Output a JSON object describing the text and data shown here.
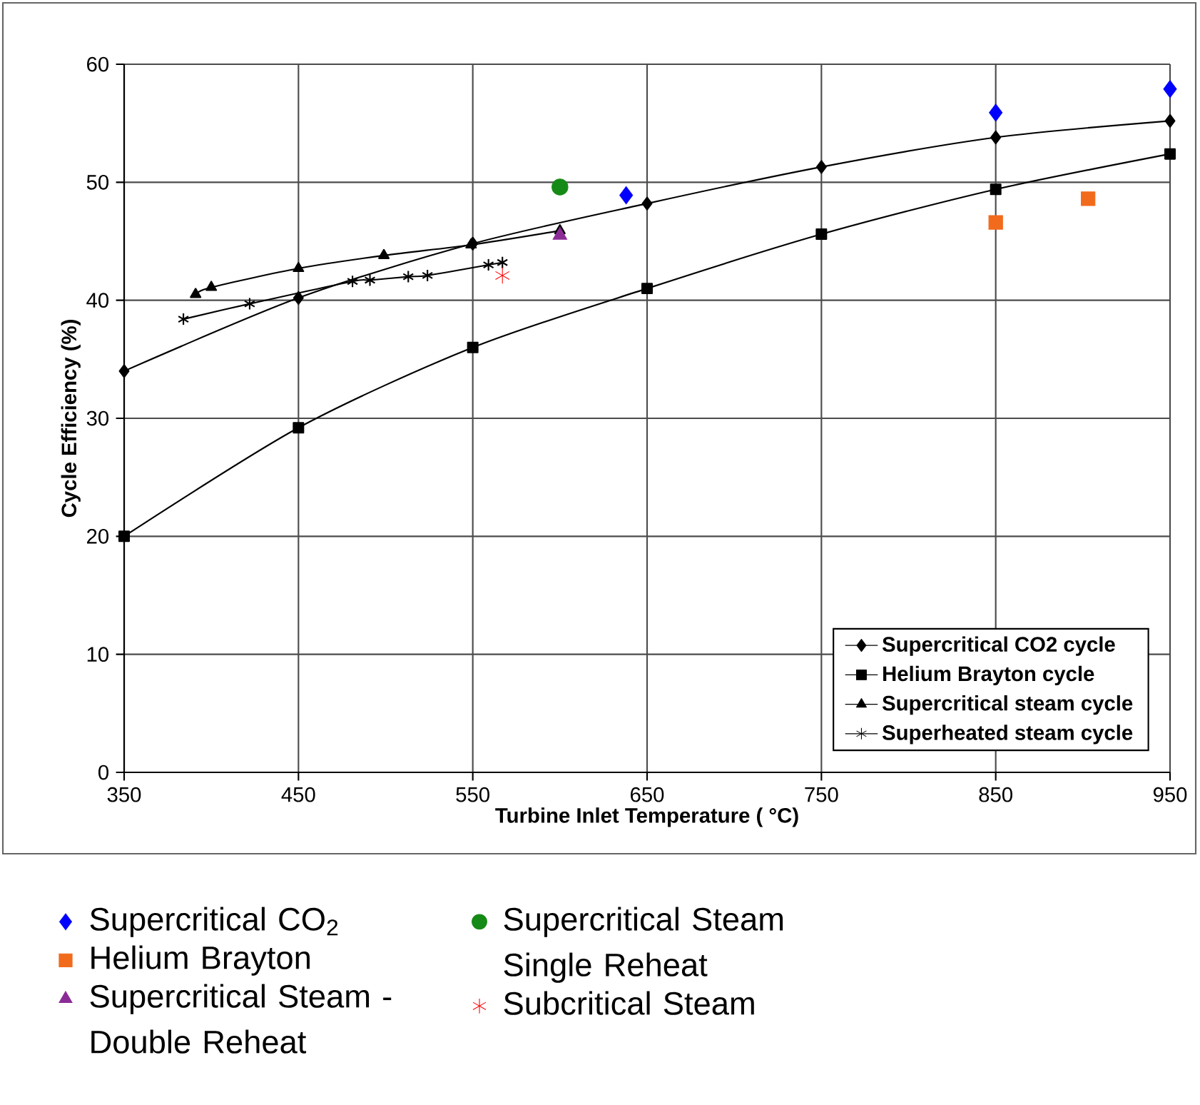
{
  "chart_data": {
    "type": "line",
    "xlabel": "Turbine Inlet Temperature (  °C)",
    "ylabel": "Cycle Efficiency (%)",
    "xlim": [
      350,
      950
    ],
    "ylim": [
      0,
      60
    ],
    "xticks": [
      350,
      450,
      550,
      650,
      750,
      850,
      950
    ],
    "yticks": [
      0,
      10,
      20,
      30,
      40,
      50,
      60
    ],
    "grid": true,
    "legend": "bottom right",
    "series": [
      {
        "name": "Supercritical CO2 cycle",
        "color": "#000000",
        "marker": "diamond",
        "x": [
          350,
          450,
          550,
          650,
          750,
          850,
          950
        ],
        "values": [
          34,
          40.2,
          44.8,
          48.2,
          51.3,
          53.8,
          55.2
        ]
      },
      {
        "name": "Helium Brayton cycle",
        "color": "#000000",
        "marker": "square",
        "x": [
          350,
          450,
          550,
          650,
          750,
          850,
          950
        ],
        "values": [
          20,
          29.2,
          36,
          41,
          45.6,
          49.4,
          52.4
        ]
      },
      {
        "name": "Supercritical steam cycle",
        "color": "#000000",
        "marker": "triangle",
        "x": [
          391,
          400,
          450,
          499,
          549,
          600
        ],
        "values": [
          40.5,
          41.1,
          42.7,
          43.8,
          44.7,
          45.9
        ]
      },
      {
        "name": "Superheated steam cycle",
        "color": "#000000",
        "marker": "cross",
        "x": [
          384,
          422,
          481,
          491,
          513,
          524,
          559,
          567
        ],
        "values": [
          38.4,
          39.7,
          41.6,
          41.7,
          42.0,
          42.1,
          43.0,
          43.2
        ]
      },
      {
        "name": "Supercritical CO$_{2}$",
        "type": "scatter",
        "color": "#0000ff",
        "marker": "diamond",
        "x": [
          638,
          850,
          950
        ],
        "values": [
          48.9,
          55.9,
          57.9
        ]
      },
      {
        "name": "Helium Brayton",
        "type": "scatter",
        "color": "#f26b1d",
        "marker": "square",
        "x": [
          850,
          903
        ],
        "values": [
          46.6,
          48.6
        ]
      },
      {
        "name": "Supercritical Steam - Double Reheat",
        "type": "scatter",
        "color": "#8b2c96",
        "marker": "triangle",
        "x": [
          600
        ],
        "values": [
          45.5
        ]
      },
      {
        "name": "Supercritical Steam Single Reheat",
        "type": "scatter",
        "color": "#168a16",
        "marker": "circle",
        "x": [
          600
        ],
        "values": [
          49.6
        ]
      },
      {
        "name": "Subcritical Steam",
        "type": "scatter",
        "color": "#ff0000",
        "marker": "cross",
        "x": [
          567
        ],
        "values": [
          42.1
        ]
      }
    ]
  }
}
